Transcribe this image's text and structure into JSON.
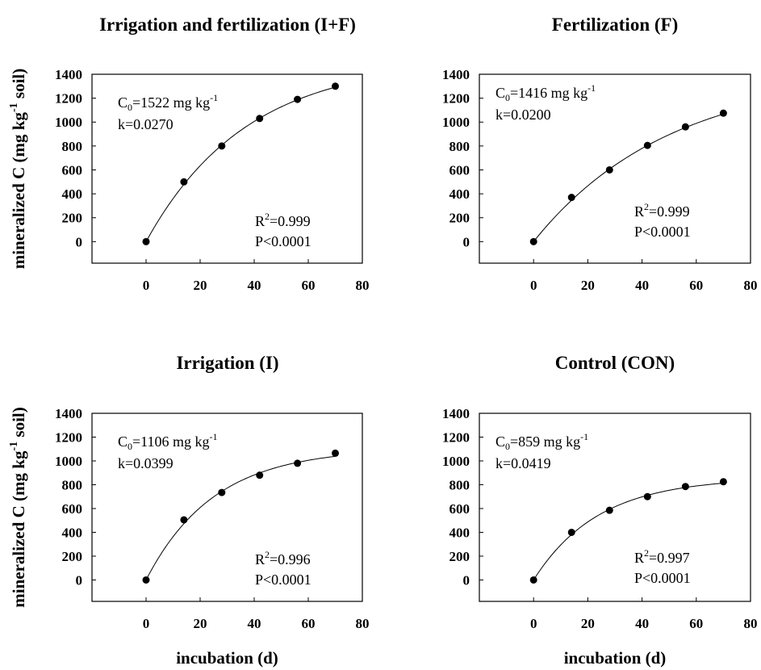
{
  "chart_data": [
    {
      "type": "scatter",
      "title": "Irrigation and fertilization (I+F)",
      "ylabel": "mineralized C (mg kg-1 soil)",
      "xlabel": "",
      "x": [
        0,
        14,
        28,
        42,
        56,
        70
      ],
      "y": [
        0,
        500,
        800,
        1030,
        1190,
        1300
      ],
      "fit": {
        "C0": 1522,
        "k": 0.027
      },
      "xlim": [
        -20,
        80
      ],
      "ylim": [
        -180,
        1400
      ],
      "xticks": [
        "0",
        "20",
        "40",
        "60",
        "80"
      ],
      "yticks": [
        "0",
        "200",
        "400",
        "600",
        "800",
        "1000",
        "1200",
        "1400"
      ],
      "annotations": {
        "c0_prefix": "C",
        "c0_sub": "0",
        "c0_value": "=1522 mg kg",
        "c0_sup": "-1",
        "k": "k=0.0270",
        "r2_prefix": "R",
        "r2_sup": "2",
        "r2_value": "=0.999",
        "p": "P<0.0001"
      }
    },
    {
      "type": "scatter",
      "title": "Fertilization (F)",
      "ylabel": "",
      "xlabel": "",
      "x": [
        0,
        14,
        28,
        42,
        56,
        70
      ],
      "y": [
        0,
        370,
        600,
        805,
        960,
        1075
      ],
      "fit": {
        "C0": 1416,
        "k": 0.02
      },
      "xlim": [
        -20,
        80
      ],
      "ylim": [
        -180,
        1400
      ],
      "xticks": [
        "0",
        "20",
        "40",
        "60",
        "80"
      ],
      "yticks": [
        "0",
        "200",
        "400",
        "600",
        "800",
        "1000",
        "1200",
        "1400"
      ],
      "annotations": {
        "c0_prefix": "C",
        "c0_sub": "0",
        "c0_value": "=1416 mg kg",
        "c0_sup": "-1",
        "k": "k=0.0200",
        "r2_prefix": "R",
        "r2_sup": "2",
        "r2_value": "=0.999",
        "p": "P<0.0001"
      }
    },
    {
      "type": "scatter",
      "title": "Irrigation (I)",
      "ylabel": "mineralized C (mg kg-1 soil)",
      "xlabel": "incubation (d)",
      "x": [
        0,
        14,
        28,
        42,
        56,
        70
      ],
      "y": [
        0,
        505,
        735,
        880,
        980,
        1065
      ],
      "fit": {
        "C0": 1106,
        "k": 0.0399
      },
      "xlim": [
        -20,
        80
      ],
      "ylim": [
        -180,
        1400
      ],
      "xticks": [
        "0",
        "20",
        "40",
        "60",
        "80"
      ],
      "yticks": [
        "0",
        "200",
        "400",
        "600",
        "800",
        "1000",
        "1200",
        "1400"
      ],
      "annotations": {
        "c0_prefix": "C",
        "c0_sub": "0",
        "c0_value": "=1106 mg kg",
        "c0_sup": "-1",
        "k": "k=0.0399",
        "r2_prefix": "R",
        "r2_sup": "2",
        "r2_value": "=0.996",
        "p": "P<0.0001"
      }
    },
    {
      "type": "scatter",
      "title": "Control (CON)",
      "ylabel": "",
      "xlabel": "incubation (d)",
      "x": [
        0,
        14,
        28,
        42,
        56,
        70
      ],
      "y": [
        0,
        400,
        585,
        700,
        785,
        825
      ],
      "fit": {
        "C0": 859,
        "k": 0.0419
      },
      "xlim": [
        -20,
        80
      ],
      "ylim": [
        -180,
        1400
      ],
      "xticks": [
        "0",
        "20",
        "40",
        "60",
        "80"
      ],
      "yticks": [
        "0",
        "200",
        "400",
        "600",
        "800",
        "1000",
        "1200",
        "1400"
      ],
      "annotations": {
        "c0_prefix": "C",
        "c0_sub": "0",
        "c0_value": "=859 mg kg",
        "c0_sup": "-1",
        "k": "k=0.0419",
        "r2_prefix": "R",
        "r2_sup": "2",
        "r2_value": "=0.997",
        "p": "P<0.0001"
      }
    }
  ]
}
